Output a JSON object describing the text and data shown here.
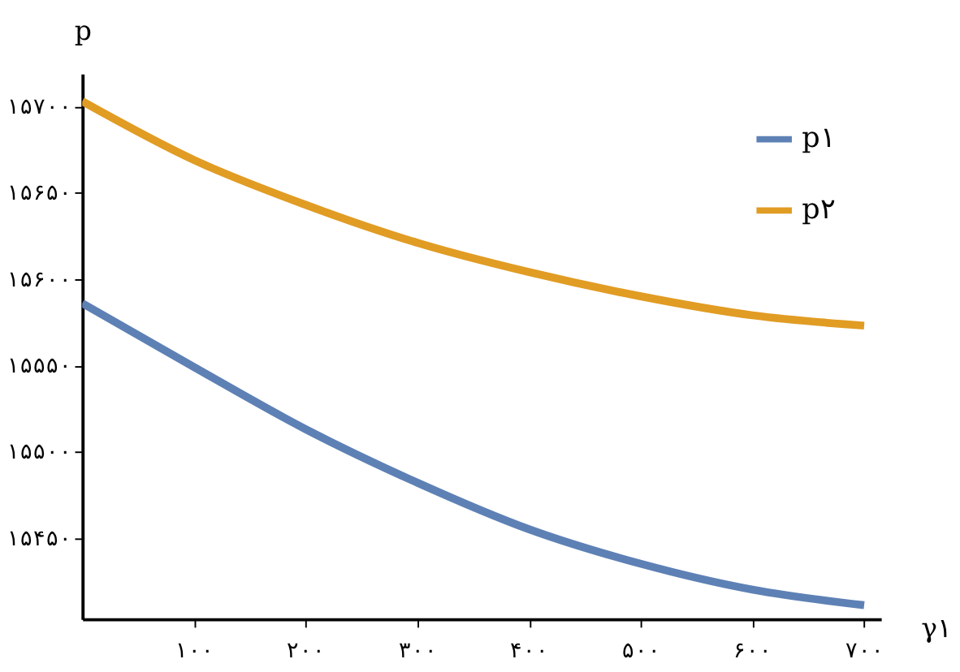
{
  "chart_data": {
    "type": "line",
    "xlabel": "γ۱",
    "ylabel": "p",
    "x": [
      0,
      100,
      200,
      300,
      400,
      500,
      600,
      700
    ],
    "series": [
      {
        "name": "p۱",
        "color": "#5e81b5",
        "values": [
          15586,
          15549,
          15513,
          15482,
          15455,
          15435,
          15420,
          15411
        ]
      },
      {
        "name": "p۲",
        "color": "#e19c24",
        "values": [
          15703,
          15669,
          15643,
          15621,
          15604,
          15590,
          15579,
          15573
        ]
      }
    ],
    "xlim": [
      0,
      715
    ],
    "ylim": [
      15403,
      15719
    ],
    "xticks": [
      {
        "value": 100,
        "label": "۱۰۰"
      },
      {
        "value": 200,
        "label": "۲۰۰"
      },
      {
        "value": 300,
        "label": "۳۰۰"
      },
      {
        "value": 400,
        "label": "۴۰۰"
      },
      {
        "value": 500,
        "label": "۵۰۰"
      },
      {
        "value": 600,
        "label": "۶۰۰"
      },
      {
        "value": 700,
        "label": "۷۰۰"
      }
    ],
    "yticks": [
      {
        "value": 15450,
        "label": "۱۵۴۵۰"
      },
      {
        "value": 15500,
        "label": "۱۵۵۰۰"
      },
      {
        "value": 15550,
        "label": "۱۵۵۵۰"
      },
      {
        "value": 15600,
        "label": "۱۵۶۰۰"
      },
      {
        "value": 15650,
        "label": "۱۵۶۵۰"
      },
      {
        "value": 15700,
        "label": "۱۵۷۰۰"
      }
    ],
    "grid": false,
    "legend": "top right",
    "marker": "none",
    "line_style": "solid"
  }
}
